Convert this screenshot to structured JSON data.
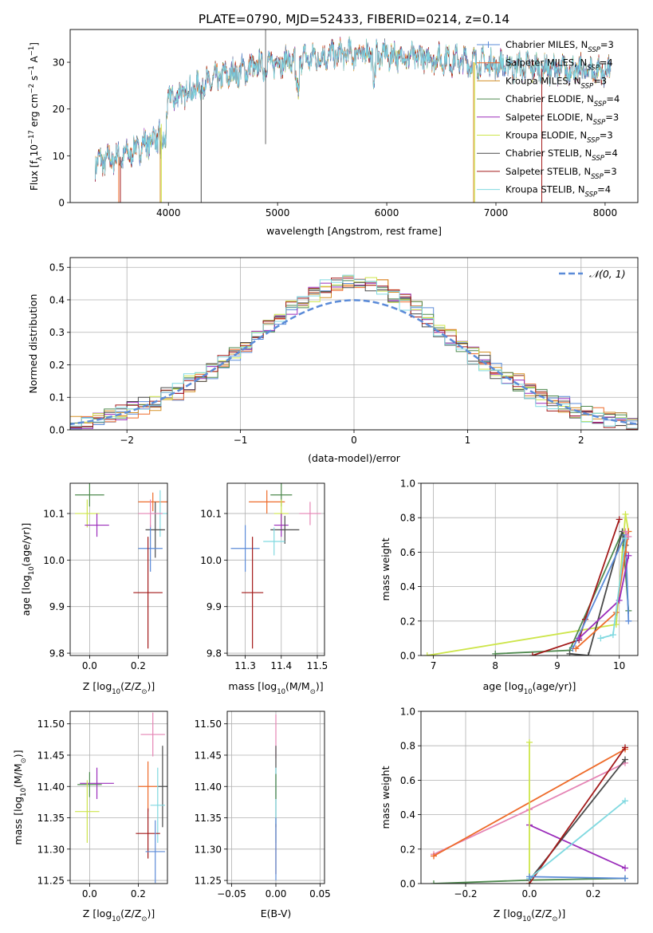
{
  "title": "PLATE=0790, MJD=52433, FIBERID=0214, z=0.14",
  "colors": {
    "C_MILES": "#5b8bd8",
    "S_MILES": "#ee6b2a",
    "K_MILES": "#d59127",
    "C_ELODIE": "#4f8a4f",
    "S_ELODIE": "#9b2dbb",
    "K_ELODIE": "#cde54a",
    "C_STELIB": "#4a4a4a",
    "S_STELIB": "#a31a1a",
    "K_STELIB": "#80d9e0",
    "pink": "#e585b5"
  },
  "chart_data": [
    {
      "id": "spectrum",
      "type": "line",
      "xlabel": "wavelength [Angstrom, rest frame]",
      "ylabel_parts": [
        "Flux [f",
        "λ",
        "10",
        "−17",
        " erg cm",
        "−2",
        " s",
        "−1",
        " A",
        "−1",
        "]"
      ],
      "xlim": [
        3100,
        8300
      ],
      "ylim": [
        0,
        37
      ],
      "xticks": [
        4000,
        5000,
        6000,
        7000,
        8000
      ],
      "yticks": [
        0,
        10,
        20,
        30
      ],
      "x_range": [
        3330,
        8050
      ],
      "legend_position": "upper right",
      "series": [
        {
          "key": "C_MILES",
          "name": "Chabrier MILES, N",
          "sub": "SSP",
          "tail": "=3",
          "marker": "+"
        },
        {
          "key": "S_MILES",
          "name": "Salpeter MILES, N",
          "sub": "SSP",
          "tail": "=4"
        },
        {
          "key": "K_MILES",
          "name": "Kroupa MILES, N",
          "sub": "SSP",
          "tail": "=3"
        },
        {
          "key": "C_ELODIE",
          "name": "Chabrier ELODIE, N",
          "sub": "SSP",
          "tail": "=4"
        },
        {
          "key": "S_ELODIE",
          "name": "Salpeter ELODIE, N",
          "sub": "SSP",
          "tail": "=3"
        },
        {
          "key": "K_ELODIE",
          "name": "Kroupa ELODIE, N",
          "sub": "SSP",
          "tail": "=3"
        },
        {
          "key": "C_STELIB",
          "name": "Chabrier STELIB, N",
          "sub": "SSP",
          "tail": "=4"
        },
        {
          "key": "S_STELIB",
          "name": "Salpeter STELIB, N",
          "sub": "SSP",
          "tail": "=3"
        },
        {
          "key": "K_STELIB",
          "name": "Kroupa STELIB, N",
          "sub": "SSP",
          "tail": "=4"
        }
      ],
      "continuum": [
        [
          3330,
          8.5
        ],
        [
          3600,
          10
        ],
        [
          3900,
          14
        ],
        [
          4000,
          22
        ],
        [
          4300,
          25
        ],
        [
          4500,
          27
        ],
        [
          4800,
          29
        ],
        [
          5000,
          30
        ],
        [
          5200,
          30.5
        ],
        [
          5500,
          31.5
        ],
        [
          5800,
          32
        ],
        [
          6000,
          31.5
        ],
        [
          6300,
          31
        ],
        [
          6600,
          30.5
        ],
        [
          7000,
          29.5
        ],
        [
          7500,
          28.5
        ],
        [
          8050,
          28
        ]
      ],
      "dropouts": [
        {
          "x": 3545,
          "key": "S_MILES"
        },
        {
          "x": 3560,
          "key": "S_STELIB"
        },
        {
          "x": 3925,
          "key": "K_MILES"
        },
        {
          "x": 3935,
          "key": "K_ELODIE"
        },
        {
          "x": 4300,
          "key": "C_STELIB"
        },
        {
          "x": 6795,
          "key": "K_MILES"
        },
        {
          "x": 6805,
          "key": "K_ELODIE"
        },
        {
          "x": 7420,
          "key": "S_STELIB"
        }
      ],
      "spike": {
        "x": 4890,
        "y_low": 12.5,
        "y_high": 37
      }
    },
    {
      "id": "residuals",
      "type": "histogram",
      "xlabel": "(data-model)/error",
      "ylabel": "Normed distribution",
      "xlim": [
        -2.5,
        2.5
      ],
      "ylim": [
        0,
        0.53
      ],
      "xticks": [
        -2,
        -1,
        0,
        1,
        2
      ],
      "xtick_labels": [
        "−2",
        "−1",
        "0",
        "1",
        "2"
      ],
      "yticks": [
        0,
        0.1,
        0.2,
        0.3,
        0.4,
        0.5
      ],
      "ytick_labels": [
        "0.0",
        "0.1",
        "0.2",
        "0.3",
        "0.4",
        "0.5"
      ],
      "bin_width": 0.1,
      "legend": "𝒩(0, 1)",
      "curve_color": "#5b8bd8",
      "grid": true
    },
    {
      "id": "age-vs-Z",
      "type": "scatter",
      "xlabel_parts": [
        "Z [log",
        "10",
        "(Z/Z",
        "⊙",
        ")]"
      ],
      "ylabel_parts": [
        "age  [log",
        "10",
        "(age/yr)]"
      ],
      "xlim": [
        -0.08,
        0.32
      ],
      "ylim": [
        9.795,
        10.165
      ],
      "xticks": [
        0.0,
        0.2
      ],
      "xtick_labels": [
        "0.0",
        "0.2"
      ],
      "yticks": [
        9.8,
        9.9,
        10.0,
        10.1
      ],
      "yticks_labels": [
        "9.8",
        "9.9",
        "10.0",
        "10.1"
      ],
      "grid": true,
      "points": [
        {
          "x": 0.0,
          "y": 10.14,
          "xerr": 0.06,
          "yerr": 0.025,
          "key": "C_ELODIE"
        },
        {
          "x": -0.01,
          "y": 10.1,
          "xerr": 0.05,
          "yerr": 0.03,
          "key": "K_ELODIE"
        },
        {
          "x": 0.03,
          "y": 10.075,
          "xerr": 0.05,
          "yerr": 0.025,
          "key": "S_ELODIE"
        },
        {
          "x": 0.26,
          "y": 10.125,
          "xerr": 0.06,
          "yerr": 0.02,
          "key": "S_MILES"
        },
        {
          "x": 0.29,
          "y": 10.1,
          "xerr": 0.04,
          "yerr": 0.05,
          "key": "K_STELIB"
        },
        {
          "x": 0.27,
          "y": 10.065,
          "xerr": 0.04,
          "yerr": 0.06,
          "key": "C_STELIB"
        },
        {
          "x": 0.25,
          "y": 10.025,
          "xerr": 0.05,
          "yerr": 0.05,
          "key": "C_MILES"
        },
        {
          "x": 0.24,
          "y": 9.93,
          "xerr": 0.06,
          "yerr": 0.12,
          "key": "S_STELIB"
        },
        {
          "x": 0.25,
          "y": 10.1,
          "xerr": 0.05,
          "yerr": 0.03,
          "key": "pink"
        }
      ]
    },
    {
      "id": "age-vs-mass",
      "type": "scatter",
      "xlabel_parts": [
        "mass [log",
        "10",
        "(M/M",
        "⊙",
        ")]"
      ],
      "xlim": [
        11.25,
        11.52
      ],
      "ylim": [
        9.795,
        10.165
      ],
      "xticks": [
        11.3,
        11.4,
        11.5
      ],
      "xtick_labels": [
        "11.3",
        "11.4",
        "11.5"
      ],
      "yticks": [
        9.8,
        9.9,
        10.0,
        10.1
      ],
      "yticks_labels": [
        "9.8",
        "9.9",
        "10.0",
        "10.1"
      ],
      "grid": true,
      "points": [
        {
          "x": 11.4,
          "y": 10.14,
          "xerr": 0.03,
          "yerr": 0.025,
          "key": "C_ELODIE"
        },
        {
          "x": 11.36,
          "y": 10.125,
          "xerr": 0.05,
          "yerr": 0.025,
          "key": "S_MILES"
        },
        {
          "x": 11.4,
          "y": 10.1,
          "xerr": 0.02,
          "yerr": 0.03,
          "key": "K_ELODIE"
        },
        {
          "x": 11.48,
          "y": 10.1,
          "xerr": 0.03,
          "yerr": 0.025,
          "key": "pink"
        },
        {
          "x": 11.4,
          "y": 10.075,
          "xerr": 0.02,
          "yerr": 0.025,
          "key": "S_ELODIE"
        },
        {
          "x": 11.41,
          "y": 10.065,
          "xerr": 0.04,
          "yerr": 0.03,
          "key": "C_STELIB"
        },
        {
          "x": 11.38,
          "y": 10.04,
          "xerr": 0.03,
          "yerr": 0.03,
          "key": "K_STELIB"
        },
        {
          "x": 11.3,
          "y": 10.025,
          "xerr": 0.04,
          "yerr": 0.05,
          "key": "C_MILES"
        },
        {
          "x": 11.32,
          "y": 9.93,
          "xerr": 0.03,
          "yerr": 0.12,
          "key": "S_STELIB"
        }
      ]
    },
    {
      "id": "massweight-vs-age",
      "type": "line",
      "xlabel_parts": [
        "age  [log",
        "10",
        "(age/yr)]"
      ],
      "ylabel": "mass weight",
      "xlim": [
        6.8,
        10.3
      ],
      "ylim": [
        0,
        1.0
      ],
      "xticks": [
        7,
        8,
        9,
        10
      ],
      "xtick_labels": [
        "7",
        "8",
        "9",
        "10"
      ],
      "yticks": [
        0,
        0.2,
        0.4,
        0.6,
        0.8,
        1.0
      ],
      "ytick_labels": [
        "0.0",
        "0.2",
        "0.4",
        "0.6",
        "0.8",
        "1.0"
      ],
      "grid": true,
      "series": [
        {
          "key": "K_ELODIE",
          "points": [
            [
              6.9,
              0.0
            ],
            [
              9.95,
              0.18
            ],
            [
              10.1,
              0.82
            ],
            [
              10.15,
              0.72
            ]
          ]
        },
        {
          "key": "C_ELODIE",
          "points": [
            [
              8.0,
              0.01
            ],
            [
              9.2,
              0.03
            ],
            [
              10.05,
              0.72
            ],
            [
              10.15,
              0.26
            ]
          ]
        },
        {
          "key": "S_STELIB",
          "points": [
            [
              8.6,
              0.0
            ],
            [
              9.35,
              0.09
            ],
            [
              9.45,
              0.21
            ],
            [
              10.0,
              0.79
            ]
          ]
        },
        {
          "key": "C_STELIB",
          "points": [
            [
              9.2,
              0.01
            ],
            [
              9.5,
              0.0
            ],
            [
              10.05,
              0.72
            ],
            [
              10.1,
              0.64
            ]
          ]
        },
        {
          "key": "C_MILES",
          "points": [
            [
              9.25,
              0.04
            ],
            [
              10.1,
              0.7
            ],
            [
              10.15,
              0.2
            ]
          ]
        },
        {
          "key": "S_MILES",
          "points": [
            [
              9.3,
              0.04
            ],
            [
              9.95,
              0.25
            ],
            [
              10.1,
              0.6
            ],
            [
              10.15,
              0.72
            ]
          ]
        },
        {
          "key": "S_ELODIE",
          "points": [
            [
              9.35,
              0.1
            ],
            [
              10.0,
              0.32
            ],
            [
              10.15,
              0.58
            ]
          ]
        },
        {
          "key": "K_STELIB",
          "points": [
            [
              9.7,
              0.1
            ],
            [
              9.9,
              0.12
            ],
            [
              10.1,
              0.68
            ]
          ]
        },
        {
          "key": "pink",
          "points": [
            [
              10.1,
              0.72
            ],
            [
              10.15,
              0.69
            ]
          ]
        }
      ]
    },
    {
      "id": "mass-vs-Z",
      "type": "scatter",
      "xlabel_parts": [
        "Z [log",
        "10",
        "(Z/Z",
        "⊙",
        ")]"
      ],
      "ylabel_parts": [
        "mass [log",
        "10",
        "(M/M",
        "⊙",
        ")]"
      ],
      "xlim": [
        -0.08,
        0.32
      ],
      "ylim": [
        11.245,
        11.52
      ],
      "xticks": [
        0.0,
        0.2
      ],
      "xtick_labels": [
        "0.0",
        "0.2"
      ],
      "yticks": [
        11.25,
        11.3,
        11.35,
        11.4,
        11.45,
        11.5
      ],
      "ytick_labels": [
        "11.25",
        "11.30",
        "11.35",
        "11.40",
        "11.45",
        "11.50"
      ],
      "grid": true,
      "points": [
        {
          "x": 0.26,
          "y": 11.483,
          "xerr": 0.05,
          "yerr": 0.035,
          "key": "pink"
        },
        {
          "x": 0.3,
          "y": 11.4,
          "xerr": 0.02,
          "yerr": 0.065,
          "key": "C_STELIB"
        },
        {
          "x": 0.24,
          "y": 11.4,
          "xerr": 0.04,
          "yerr": 0.04,
          "key": "S_MILES"
        },
        {
          "x": 0.0,
          "y": 11.403,
          "xerr": 0.05,
          "yerr": 0.02,
          "key": "C_ELODIE"
        },
        {
          "x": 0.03,
          "y": 11.405,
          "xerr": 0.07,
          "yerr": 0.025,
          "key": "S_ELODIE"
        },
        {
          "x": 0.28,
          "y": 11.37,
          "xerr": 0.03,
          "yerr": 0.06,
          "key": "K_STELIB"
        },
        {
          "x": -0.01,
          "y": 11.36,
          "xerr": 0.05,
          "yerr": 0.05,
          "key": "K_ELODIE"
        },
        {
          "x": 0.24,
          "y": 11.325,
          "xerr": 0.05,
          "yerr": 0.04,
          "key": "S_STELIB"
        },
        {
          "x": 0.27,
          "y": 11.296,
          "xerr": 0.04,
          "yerr": 0.05,
          "key": "C_MILES"
        }
      ]
    },
    {
      "id": "mass-vs-EBV",
      "type": "scatter",
      "xlabel": "E(B-V)",
      "xlim": [
        -0.055,
        0.055
      ],
      "ylim": [
        11.245,
        11.52
      ],
      "xticks": [
        -0.05,
        0.0,
        0.05
      ],
      "xtick_labels": [
        "−0.05",
        "0.00",
        "0.05"
      ],
      "yticks": [
        11.25,
        11.3,
        11.35,
        11.4,
        11.45,
        11.5
      ],
      "ytick_labels": [
        "11.25",
        "11.30",
        "11.35",
        "11.40",
        "11.45",
        "11.50"
      ],
      "grid": true,
      "points": [
        {
          "x": 0.0,
          "y": 11.48,
          "xerr": 0.0,
          "yerr": 0.035,
          "key": "pink"
        },
        {
          "x": 0.0,
          "y": 11.4,
          "xerr": 0.0,
          "yerr": 0.065,
          "key": "C_STELIB"
        },
        {
          "x": 0.0,
          "y": 11.37,
          "xerr": 0.0,
          "yerr": 0.06,
          "key": "K_STELIB"
        },
        {
          "x": 0.0,
          "y": 11.4,
          "xerr": 0.0,
          "yerr": 0.02,
          "key": "C_ELODIE"
        },
        {
          "x": 0.0,
          "y": 11.3,
          "xerr": 0.0,
          "yerr": 0.04,
          "key": "S_STELIB"
        },
        {
          "x": 0.0,
          "y": 11.3,
          "xerr": 0.0,
          "yerr": 0.05,
          "key": "C_MILES"
        }
      ]
    },
    {
      "id": "massweight-vs-Z",
      "type": "line",
      "xlabel_parts": [
        "Z [log",
        "10",
        "(Z/Z",
        "⊙",
        ")]"
      ],
      "ylabel": "mass weight",
      "xlim": [
        -0.34,
        0.34
      ],
      "ylim": [
        0,
        1.0
      ],
      "xticks": [
        -0.2,
        0.0,
        0.2
      ],
      "xtick_labels": [
        "−0.2",
        "0.0",
        "0.2"
      ],
      "yticks": [
        0,
        0.2,
        0.4,
        0.6,
        0.8,
        1.0
      ],
      "ytick_labels": [
        "0.0",
        "0.2",
        "0.4",
        "0.6",
        "0.8",
        "1.0"
      ],
      "grid": true,
      "series": [
        {
          "key": "C_ELODIE",
          "points": [
            [
              -0.3,
              0.0
            ],
            [
              0.0,
              0.02
            ],
            [
              0.3,
              0.03
            ]
          ]
        },
        {
          "key": "pink",
          "points": [
            [
              -0.3,
              0.17
            ],
            [
              0.0,
              0.43
            ],
            [
              0.3,
              0.7
            ]
          ]
        },
        {
          "key": "S_MILES",
          "points": [
            [
              -0.3,
              0.16
            ],
            [
              0.3,
              0.78
            ]
          ]
        },
        {
          "key": "S_ELODIE",
          "points": [
            [
              0.0,
              0.34
            ],
            [
              0.3,
              0.09
            ]
          ]
        },
        {
          "key": "K_ELODIE",
          "points": [
            [
              0.0,
              0.82
            ],
            [
              0.0,
              0.0
            ]
          ]
        },
        {
          "key": "C_STELIB",
          "points": [
            [
              0.0,
              0.02
            ],
            [
              0.3,
              0.72
            ]
          ]
        },
        {
          "key": "S_STELIB",
          "points": [
            [
              0.0,
              0.0
            ],
            [
              0.3,
              0.79
            ]
          ]
        },
        {
          "key": "K_STELIB",
          "points": [
            [
              0.0,
              0.03
            ],
            [
              0.3,
              0.48
            ]
          ]
        },
        {
          "key": "C_MILES",
          "points": [
            [
              0.0,
              0.04
            ],
            [
              0.3,
              0.03
            ]
          ]
        }
      ]
    }
  ]
}
